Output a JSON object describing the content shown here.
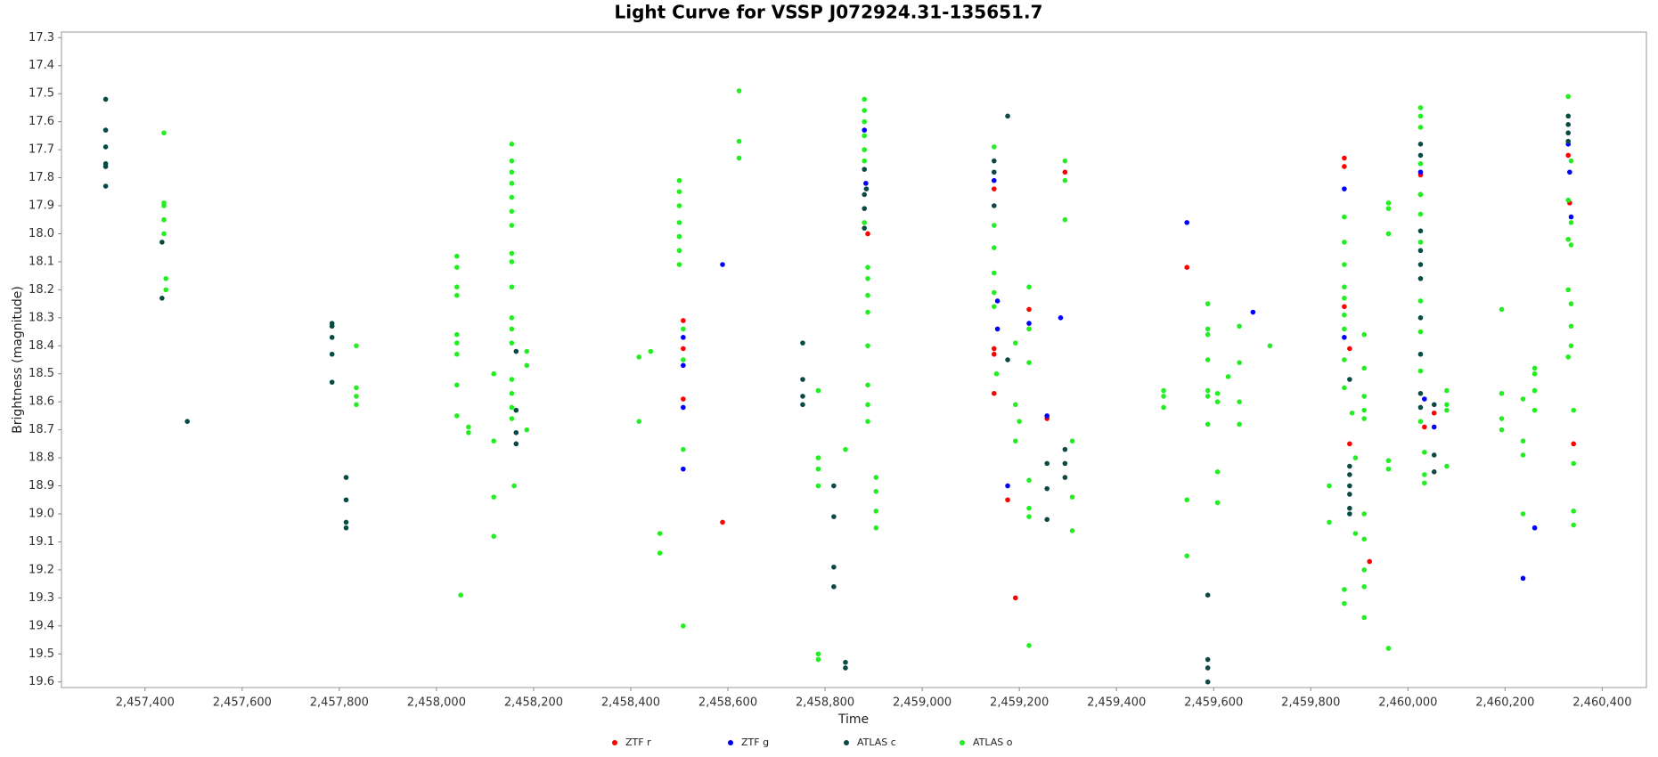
{
  "chart_data": {
    "type": "scatter",
    "title": "Light Curve for VSSP J072924.31-135651.7",
    "x_label": "Time",
    "y_label": "Brightness (magnitude)",
    "xlim": [
      2457228,
      2460491
    ],
    "ylim": [
      19.62,
      17.28
    ],
    "xticks": [
      {
        "value": 2457400,
        "label": "2,457,400"
      },
      {
        "value": 2457600,
        "label": "2,457,600"
      },
      {
        "value": 2457800,
        "label": "2,457,800"
      },
      {
        "value": 2458000,
        "label": "2,458,000"
      },
      {
        "value": 2458200,
        "label": "2,458,200"
      },
      {
        "value": 2458400,
        "label": "2,458,400"
      },
      {
        "value": 2458600,
        "label": "2,458,600"
      },
      {
        "value": 2458800,
        "label": "2,458,800"
      },
      {
        "value": 2459000,
        "label": "2,459,000"
      },
      {
        "value": 2459200,
        "label": "2,459,200"
      },
      {
        "value": 2459400,
        "label": "2,459,400"
      },
      {
        "value": 2459600,
        "label": "2,459,600"
      },
      {
        "value": 2459800,
        "label": "2,459,800"
      },
      {
        "value": 2460000,
        "label": "2,460,000"
      },
      {
        "value": 2460200,
        "label": "2,460,200"
      },
      {
        "value": 2460400,
        "label": "2,460,400"
      }
    ],
    "yticks": [
      17.3,
      17.4,
      17.5,
      17.6,
      17.7,
      17.8,
      17.9,
      {
        "value": 18,
        "label": "18.0"
      },
      18.1,
      18.2,
      18.3,
      18.4,
      18.5,
      18.6,
      18.7,
      18.8,
      18.9,
      {
        "value": 19,
        "label": "19.0"
      },
      19.1,
      19.2,
      19.3,
      19.4,
      19.5,
      19.6
    ],
    "grid": false,
    "legend": "bottom",
    "series": [
      {
        "name": "ZTF r",
        "color": "#ff0000",
        "x": [
          2458508,
          2458508,
          2458508,
          2458589,
          2458888,
          2459148,
          2459148,
          2459148,
          2459148,
          2459176,
          2459192,
          2459220,
          2459257,
          2459294,
          2459545,
          2459869,
          2459869,
          2459869,
          2459880,
          2459880,
          2459921,
          2460026,
          2460034,
          2460054,
          2460330,
          2460333,
          2460341
        ],
        "values": [
          18.31,
          18.41,
          18.59,
          19.03,
          18.0,
          17.84,
          18.41,
          18.43,
          18.57,
          18.95,
          19.3,
          18.27,
          18.66,
          17.78,
          18.12,
          17.73,
          17.76,
          18.26,
          18.41,
          18.75,
          19.17,
          17.79,
          18.69,
          18.64,
          17.72,
          17.89,
          18.75
        ]
      },
      {
        "name": "ZTF g",
        "color": "#0000ff",
        "x": [
          2458508,
          2458508,
          2458508,
          2458508,
          2458589,
          2458881,
          2458884,
          2459148,
          2459155,
          2459155,
          2459176,
          2459220,
          2459257,
          2459285,
          2459545,
          2459681,
          2459869,
          2459869,
          2460026,
          2460034,
          2460054,
          2460237,
          2460261,
          2460330,
          2460333,
          2460336
        ],
        "values": [
          18.37,
          18.47,
          18.62,
          18.84,
          18.11,
          17.63,
          17.82,
          17.81,
          18.24,
          18.34,
          18.9,
          18.32,
          18.65,
          18.3,
          17.96,
          18.28,
          17.84,
          18.37,
          17.78,
          18.59,
          18.69,
          19.23,
          19.05,
          17.68,
          17.78,
          17.94
        ]
      },
      {
        "name": "ATLAS c",
        "color": "#0b4a44",
        "x": [
          2457319,
          2457319,
          2457319,
          2457319,
          2457319,
          2457319,
          2457435,
          2457435,
          2457487,
          2457785,
          2457785,
          2457785,
          2457785,
          2457785,
          2457814,
          2457814,
          2457814,
          2457814,
          2458164,
          2458164,
          2458164,
          2458164,
          2458754,
          2458754,
          2458754,
          2458754,
          2458818,
          2458818,
          2458818,
          2458818,
          2458842,
          2458842,
          2458881,
          2458881,
          2458881,
          2458881,
          2458885,
          2459148,
          2459148,
          2459148,
          2459176,
          2459176,
          2459257,
          2459257,
          2459257,
          2459294,
          2459294,
          2459294,
          2459588,
          2459588,
          2459588,
          2459588,
          2459880,
          2459880,
          2459880,
          2459880,
          2459880,
          2459880,
          2459880,
          2460026,
          2460026,
          2460026,
          2460026,
          2460026,
          2460026,
          2460026,
          2460026,
          2460026,
          2460026,
          2460026,
          2460054,
          2460054,
          2460054,
          2460330,
          2460330,
          2460330,
          2460330
        ],
        "values": [
          17.52,
          17.63,
          17.69,
          17.75,
          17.76,
          17.83,
          18.03,
          18.23,
          18.67,
          18.32,
          18.33,
          18.37,
          18.43,
          18.53,
          18.87,
          18.95,
          19.03,
          19.05,
          18.42,
          18.63,
          18.71,
          18.75,
          18.39,
          18.52,
          18.58,
          18.61,
          18.9,
          19.01,
          19.19,
          19.26,
          19.53,
          19.55,
          17.77,
          17.86,
          17.91,
          17.98,
          17.84,
          17.74,
          17.78,
          17.9,
          17.58,
          18.45,
          18.82,
          18.91,
          19.02,
          18.77,
          18.82,
          18.87,
          19.29,
          19.52,
          19.55,
          19.6,
          18.52,
          18.83,
          18.86,
          18.9,
          18.93,
          18.98,
          19.0,
          17.68,
          17.72,
          17.86,
          17.99,
          18.06,
          18.11,
          18.16,
          18.3,
          18.43,
          18.57,
          18.62,
          18.61,
          18.79,
          18.85,
          17.58,
          17.61,
          17.64,
          17.67
        ]
      },
      {
        "name": "ATLAS o",
        "color": "#22ee22",
        "x": [
          2457439,
          2457439,
          2457439,
          2457439,
          2457439,
          2457443,
          2457443,
          2457835,
          2457835,
          2457835,
          2457835,
          2458042,
          2458042,
          2458042,
          2458042,
          2458042,
          2458042,
          2458042,
          2458042,
          2458042,
          2458050,
          2458066,
          2458066,
          2458118,
          2458118,
          2458118,
          2458118,
          2458155,
          2458155,
          2458155,
          2458155,
          2458155,
          2458155,
          2458155,
          2458155,
          2458155,
          2458155,
          2458155,
          2458155,
          2458155,
          2458155,
          2458155,
          2458155,
          2458155,
          2458160,
          2458186,
          2458186,
          2458186,
          2458417,
          2458441,
          2458417,
          2458460,
          2458460,
          2458500,
          2458500,
          2458500,
          2458500,
          2458500,
          2458500,
          2458500,
          2458508,
          2458508,
          2458508,
          2458508,
          2458623,
          2458623,
          2458623,
          2458786,
          2458786,
          2458786,
          2458786,
          2458786,
          2458786,
          2458842,
          2458881,
          2458881,
          2458881,
          2458881,
          2458881,
          2458881,
          2458881,
          2458888,
          2458888,
          2458888,
          2458888,
          2458888,
          2458888,
          2458888,
          2458888,
          2458905,
          2458905,
          2458905,
          2458905,
          2459148,
          2459148,
          2459148,
          2459148,
          2459148,
          2459148,
          2459153,
          2459192,
          2459192,
          2459192,
          2459200,
          2459220,
          2459220,
          2459220,
          2459220,
          2459220,
          2459220,
          2459220,
          2459294,
          2459294,
          2459294,
          2459309,
          2459309,
          2459309,
          2459497,
          2459497,
          2459497,
          2459545,
          2459545,
          2459588,
          2459588,
          2459588,
          2459588,
          2459588,
          2459588,
          2459588,
          2459608,
          2459608,
          2459608,
          2459608,
          2459630,
          2459653,
          2459653,
          2459653,
          2459653,
          2459716,
          2459838,
          2459838,
          2459869,
          2459869,
          2459869,
          2459869,
          2459869,
          2459869,
          2459869,
          2459869,
          2459869,
          2459869,
          2459869,
          2459885,
          2459892,
          2459892,
          2459910,
          2459910,
          2459910,
          2459910,
          2459910,
          2459910,
          2459910,
          2459910,
          2459910,
          2459910,
          2459960,
          2459960,
          2459960,
          2459960,
          2459960,
          2459960,
          2460026,
          2460026,
          2460026,
          2460026,
          2460026,
          2460026,
          2460026,
          2460026,
          2460026,
          2460026,
          2460026,
          2460034,
          2460034,
          2460034,
          2460080,
          2460080,
          2460080,
          2460080,
          2460193,
          2460193,
          2460193,
          2460193,
          2460237,
          2460237,
          2460237,
          2460237,
          2460261,
          2460261,
          2460261,
          2460261,
          2460330,
          2460330,
          2460330,
          2460330,
          2460330,
          2460336,
          2460336,
          2460336,
          2460336,
          2460336,
          2460336,
          2460341,
          2460341,
          2460341,
          2460341
        ],
        "values": [
          17.64,
          17.89,
          17.9,
          17.95,
          18.0,
          18.16,
          18.2,
          18.4,
          18.55,
          18.58,
          18.61,
          18.08,
          18.12,
          18.19,
          18.22,
          18.36,
          18.39,
          18.43,
          18.54,
          18.65,
          19.29,
          18.69,
          18.71,
          18.5,
          18.74,
          18.94,
          19.08,
          17.68,
          17.74,
          17.78,
          17.82,
          17.87,
          17.92,
          17.97,
          18.07,
          18.1,
          18.19,
          18.3,
          18.34,
          18.39,
          18.52,
          18.57,
          18.62,
          18.66,
          18.9,
          18.42,
          18.47,
          18.7,
          18.44,
          18.42,
          18.67,
          19.07,
          19.14,
          17.81,
          17.85,
          17.9,
          17.96,
          18.01,
          18.06,
          18.11,
          18.34,
          18.45,
          18.77,
          19.4,
          17.49,
          17.67,
          17.73,
          18.56,
          18.8,
          18.84,
          18.9,
          19.5,
          19.52,
          18.77,
          17.52,
          17.56,
          17.6,
          17.65,
          17.7,
          17.74,
          17.96,
          18.12,
          18.16,
          18.22,
          18.28,
          18.4,
          18.54,
          18.61,
          18.67,
          18.87,
          18.92,
          18.99,
          19.05,
          17.69,
          17.97,
          18.05,
          18.14,
          18.21,
          18.26,
          18.5,
          18.39,
          18.61,
          18.74,
          18.67,
          18.19,
          18.34,
          18.46,
          18.88,
          18.98,
          19.01,
          19.47,
          17.74,
          17.81,
          17.95,
          18.74,
          18.94,
          19.06,
          18.56,
          18.58,
          18.62,
          18.95,
          19.15,
          18.25,
          18.34,
          18.36,
          18.45,
          18.56,
          18.58,
          18.68,
          18.57,
          18.6,
          18.85,
          18.96,
          18.51,
          18.33,
          18.46,
          18.6,
          18.68,
          18.4,
          18.9,
          19.03,
          17.94,
          18.03,
          18.11,
          18.19,
          18.23,
          18.29,
          18.34,
          18.45,
          18.55,
          19.27,
          19.32,
          18.64,
          18.8,
          19.07,
          18.36,
          18.48,
          18.58,
          18.63,
          18.66,
          19.0,
          19.09,
          19.2,
          19.26,
          19.37,
          17.89,
          17.91,
          18.0,
          18.81,
          18.84,
          19.48,
          17.55,
          17.58,
          17.62,
          17.75,
          17.86,
          17.93,
          18.03,
          18.24,
          18.35,
          18.49,
          18.67,
          18.78,
          18.86,
          18.89,
          18.56,
          18.61,
          18.63,
          18.83,
          18.27,
          18.57,
          18.66,
          18.7,
          18.59,
          18.74,
          18.79,
          19.0,
          18.48,
          18.5,
          18.56,
          18.63,
          17.51,
          17.88,
          18.02,
          18.2,
          18.44,
          17.74,
          17.96,
          18.04,
          18.25,
          18.33,
          18.4,
          18.63,
          18.82,
          18.99,
          19.04
        ]
      }
    ]
  }
}
